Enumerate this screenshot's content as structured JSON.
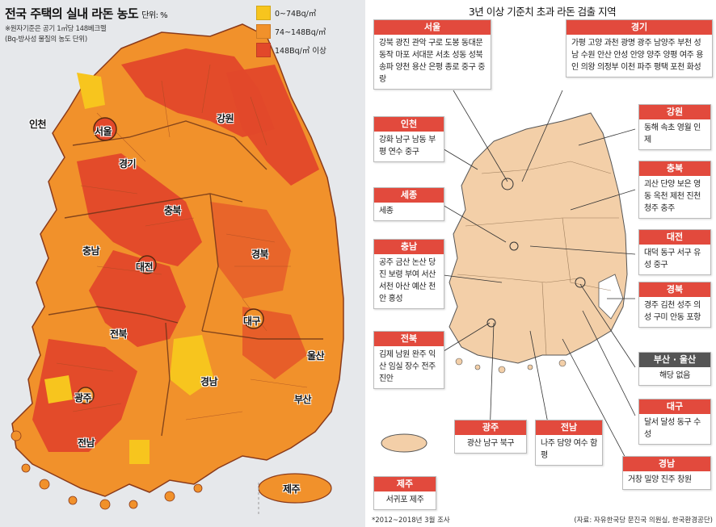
{
  "left": {
    "title": "전국 주택의 실내 라돈 농도",
    "unit": "단위: %",
    "notes": [
      "※원자기준은 공기 1㎥당 148베크렐",
      "(Bq-방사성 물질의 농도 단위)"
    ],
    "legend": [
      {
        "label": "0~74Bq/㎥",
        "color": "#f7c51e"
      },
      {
        "label": "74~148Bq/㎥",
        "color": "#f1912b"
      },
      {
        "label": "148Bq/㎥ 이상",
        "color": "#e2482a"
      }
    ],
    "regions": [
      "인천",
      "서울",
      "경기",
      "강원",
      "충북",
      "충남",
      "대전",
      "경북",
      "대구",
      "전북",
      "울산",
      "경남",
      "광주",
      "부산",
      "전남",
      "제주"
    ]
  },
  "right": {
    "title": "3년 이상 기준치 초과 라돈 검출 지역",
    "boxes": [
      {
        "head": "서울",
        "body": "강북 광진 관악 구로 도봉 동대문 동작 마포 서대문 서초 성동 성북 송파 양천 용산 은평 종로 중구 중랑"
      },
      {
        "head": "경기",
        "body": "가평 고양 과천 광명 광주 남양주 부천 성남 수원 안산 안성 안양 양주 양평 여주 용인 의왕 의정부 이천 파주 평택 포천 화성"
      },
      {
        "head": "인천",
        "body": "강화 남구 남동 부평 연수 중구"
      },
      {
        "head": "강원",
        "body": "동해 속초 영월 인제"
      },
      {
        "head": "충북",
        "body": "괴산 단양 보은 영동 옥천 제천 진천 청주 충주"
      },
      {
        "head": "세종",
        "body": "세종"
      },
      {
        "head": "대전",
        "body": "대덕 동구 서구 유성 중구"
      },
      {
        "head": "충남",
        "body": "공주 금산 논산 당진 보령 부여 서산 서천 아산 예산 천안 홍성"
      },
      {
        "head": "경북",
        "body": "경주 김천 성주 의성 구미 안동 포항"
      },
      {
        "head": "부산 · 울산",
        "body": "해당 없음"
      },
      {
        "head": "전북",
        "body": "김제 남원 완주 익산 임실 장수 전주 진안"
      },
      {
        "head": "대구",
        "body": "달서 달성 동구 수성"
      },
      {
        "head": "광주",
        "body": "광산 남구 북구"
      },
      {
        "head": "전남",
        "body": "나주 담양 여수 함평"
      },
      {
        "head": "경남",
        "body": "거창 밀양 진주 창원"
      },
      {
        "head": "제주",
        "body": "서귀포 제주"
      }
    ],
    "footnote": "*2012~2018년 3월 조사",
    "source": "(자료: 자유한국당 문진국 의원실, 한국환경공단)"
  },
  "colors": {
    "low": "#f7c51e",
    "mid": "#f1912b",
    "high": "#e2482a",
    "box_head": "#e24a3d",
    "land": "#f3cfa8",
    "sea": "#ffffff"
  }
}
